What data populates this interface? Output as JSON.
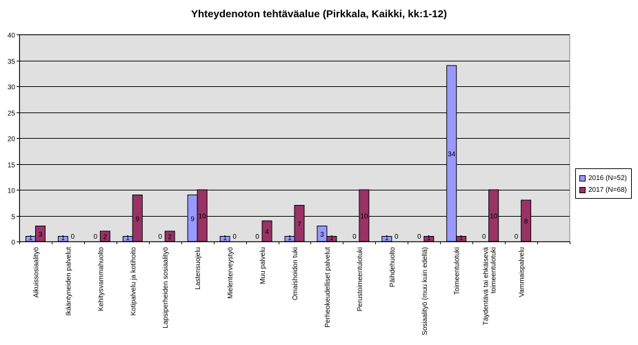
{
  "chart_data": {
    "type": "bar",
    "title": "Yhteydenoton tehtäväalue (Pirkkala, Kaikki, kk:1-12)",
    "xlabel": "",
    "ylabel": "",
    "ylim": [
      0,
      40
    ],
    "yticks": [
      0,
      5,
      10,
      15,
      20,
      25,
      30,
      35,
      40
    ],
    "grid": true,
    "legend_position": "right",
    "categories": [
      "Aikuissosiaalityö",
      "Ikääntyneiden palvelut",
      "Kehitysvammahuolto",
      "Kotipalvelu ja kotihoito",
      "Lapsiperheiden sosiaalityö",
      "Lastensuojelu",
      "Mielenterveystyö",
      "Muu palvelu",
      "Omaishoidon tuki",
      "Perheokeudelliset palvelut",
      "Perustoimeentulotuki",
      "Päihdehuolto",
      "Sosiaalityö (muu kuin edellä)",
      "Toimeentulotuki",
      "Täydentävä tai ehkäisevä toimeentulotuki",
      "Vammaispalvelu"
    ],
    "series": [
      {
        "name": "2016 (N=52)",
        "color": "#9999ff",
        "values": [
          1,
          1,
          0,
          1,
          0,
          9,
          1,
          0,
          1,
          3,
          0,
          1,
          0,
          34,
          0,
          0
        ]
      },
      {
        "name": "2017 (N=68)",
        "color": "#993366",
        "values": [
          3,
          0,
          2,
          9,
          2,
          10,
          0,
          4,
          7,
          1,
          10,
          0,
          1,
          1,
          10,
          8
        ]
      }
    ],
    "plot_background": "#e0e0e0"
  }
}
